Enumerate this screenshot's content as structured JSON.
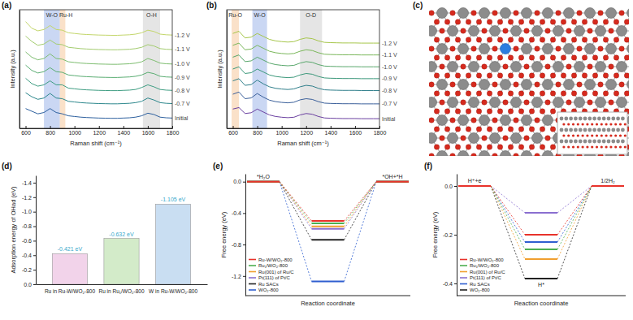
{
  "chart_data": [
    {
      "type": "line",
      "panel_label": "(a)",
      "x_label": "Raman shift (cm⁻¹)",
      "y_label": "Intensity (a.u.)",
      "x": [
        600,
        650,
        700,
        750,
        800,
        850,
        900,
        950,
        1000,
        1050,
        1100,
        1150,
        1200,
        1250,
        1300,
        1350,
        1400,
        1450,
        1500,
        1550,
        1600,
        1650,
        1700,
        1750,
        1800
      ],
      "xlim": [
        550,
        1800
      ],
      "xticks": [
        600,
        800,
        1000,
        1200,
        1400,
        1600,
        1800
      ],
      "ylim": [
        0,
        9
      ],
      "tick_labels": "x",
      "bands": [
        {
          "label": "W-O",
          "from": 750,
          "to": 880,
          "color": "#9fb6ea"
        },
        {
          "label": "Ru-H",
          "from": 880,
          "to": 925,
          "color": "#f6c99c"
        },
        {
          "label": "O-H",
          "from": 1560,
          "to": 1700,
          "color": "#cfcfcf"
        }
      ],
      "series": [
        {
          "name": "-1.2 V",
          "color": "#c3d66a",
          "values": [
            8.1,
            7.6,
            7.4,
            7.5,
            7.8,
            7.5,
            7.45,
            7.25,
            7.2,
            7.15,
            7.12,
            7.1,
            7.08,
            7.07,
            7.06,
            7.06,
            7.08,
            7.1,
            7.15,
            7.25,
            7.45,
            7.35,
            7.15,
            7.1,
            7.08
          ]
        },
        {
          "name": "-1.1 V",
          "color": "#a3cc6e",
          "values": [
            7.0,
            6.6,
            6.3,
            6.4,
            6.7,
            6.4,
            6.35,
            6.15,
            6.1,
            6.05,
            6.02,
            6.0,
            5.98,
            5.97,
            5.96,
            5.96,
            5.98,
            6.0,
            6.05,
            6.15,
            6.35,
            6.25,
            6.05,
            6.0,
            5.98
          ]
        },
        {
          "name": "-1.0 V",
          "color": "#7dbd6f",
          "values": [
            5.8,
            5.4,
            5.2,
            5.3,
            5.65,
            5.3,
            5.25,
            5.05,
            5.0,
            4.95,
            4.92,
            4.9,
            4.88,
            4.87,
            4.86,
            4.86,
            4.88,
            4.9,
            4.95,
            5.05,
            5.3,
            5.15,
            4.95,
            4.9,
            4.88
          ]
        },
        {
          "name": "-0.9 V",
          "color": "#5aad72",
          "values": [
            4.8,
            4.4,
            4.2,
            4.3,
            4.6,
            4.3,
            4.25,
            4.05,
            4.0,
            3.95,
            3.92,
            3.9,
            3.88,
            3.87,
            3.86,
            3.86,
            3.88,
            3.9,
            3.95,
            4.05,
            4.25,
            4.15,
            3.95,
            3.9,
            3.88
          ]
        },
        {
          "name": "-0.8 V",
          "color": "#3e9d82",
          "values": [
            3.8,
            3.4,
            3.2,
            3.3,
            3.6,
            3.3,
            3.3,
            3.05,
            3.0,
            2.95,
            2.92,
            2.9,
            2.88,
            2.87,
            2.86,
            2.86,
            2.88,
            2.9,
            2.95,
            3.1,
            3.3,
            3.15,
            2.95,
            2.9,
            2.88
          ]
        },
        {
          "name": "-0.7 V",
          "color": "#2c878c",
          "values": [
            2.7,
            2.4,
            2.2,
            2.3,
            2.65,
            2.3,
            2.25,
            2.05,
            2.0,
            1.95,
            1.92,
            1.9,
            1.88,
            1.87,
            1.86,
            1.86,
            1.88,
            1.9,
            1.95,
            2.05,
            2.3,
            2.15,
            1.95,
            1.9,
            1.88
          ]
        },
        {
          "name": "Initial",
          "color": "#2c5f9e",
          "values": [
            1.5,
            1.3,
            1.1,
            1.2,
            1.5,
            1.2,
            1.1,
            0.95,
            0.9,
            0.85,
            0.82,
            0.8,
            0.78,
            0.77,
            0.76,
            0.76,
            0.78,
            0.8,
            0.85,
            0.95,
            1.15,
            1.05,
            0.85,
            0.8,
            0.78
          ]
        }
      ]
    },
    {
      "type": "line",
      "panel_label": "(b)",
      "x_label": "Raman shift (cm⁻¹)",
      "y_label": "Intensity (a.u.)",
      "x": [
        600,
        650,
        700,
        750,
        800,
        850,
        900,
        950,
        1000,
        1050,
        1100,
        1150,
        1200,
        1250,
        1300,
        1350,
        1400,
        1450,
        1500,
        1550,
        1600,
        1650,
        1700,
        1750,
        1800
      ],
      "xlim": [
        550,
        1800
      ],
      "xticks": [
        600,
        800,
        1000,
        1200,
        1400,
        1600,
        1800
      ],
      "ylim": [
        0,
        8
      ],
      "tick_labels": "x",
      "bands": [
        {
          "label": "Ru-O",
          "from": 590,
          "to": 650,
          "color": "#f6c99c"
        },
        {
          "label": "W-O",
          "from": 760,
          "to": 880,
          "color": "#9fb6ea"
        },
        {
          "label": "O-D",
          "from": 1150,
          "to": 1330,
          "color": "#cfcfcf"
        }
      ],
      "series": [
        {
          "name": "-1.2 V",
          "color": "#a6c64a",
          "values": [
            6.4,
            6.55,
            6.1,
            6.15,
            6.4,
            6.2,
            6.0,
            5.9,
            5.85,
            5.82,
            5.85,
            6.0,
            6.1,
            6.05,
            5.9,
            5.8,
            5.78,
            5.77,
            5.76,
            5.76,
            5.76,
            5.75,
            5.75,
            5.75,
            5.75
          ]
        },
        {
          "name": "-1.1 V",
          "color": "#7ab75a",
          "values": [
            5.6,
            5.75,
            5.3,
            5.35,
            5.6,
            5.4,
            5.2,
            5.1,
            5.05,
            5.02,
            5.05,
            5.2,
            5.3,
            5.25,
            5.1,
            5.0,
            4.98,
            4.97,
            4.96,
            4.96,
            4.96,
            4.95,
            4.95,
            4.95,
            4.95
          ]
        },
        {
          "name": "-1.0 V",
          "color": "#58a76b",
          "values": [
            4.8,
            4.95,
            4.5,
            4.55,
            4.8,
            4.6,
            4.4,
            4.3,
            4.25,
            4.22,
            4.25,
            4.4,
            4.5,
            4.45,
            4.3,
            4.2,
            4.18,
            4.17,
            4.16,
            4.16,
            4.16,
            4.15,
            4.15,
            4.15,
            4.15
          ]
        },
        {
          "name": "-0.9 V",
          "color": "#3b987a",
          "values": [
            4.0,
            4.15,
            3.7,
            3.75,
            4.0,
            3.8,
            3.6,
            3.5,
            3.45,
            3.42,
            3.45,
            3.6,
            3.7,
            3.65,
            3.5,
            3.4,
            3.38,
            3.37,
            3.36,
            3.36,
            3.36,
            3.35,
            3.35,
            3.35,
            3.35
          ]
        },
        {
          "name": "-0.8 V",
          "color": "#2e7e8a",
          "values": [
            3.2,
            3.35,
            2.9,
            2.95,
            3.25,
            3.0,
            2.8,
            2.7,
            2.65,
            2.62,
            2.66,
            2.8,
            2.9,
            2.85,
            2.7,
            2.6,
            2.58,
            2.57,
            2.56,
            2.56,
            2.56,
            2.55,
            2.55,
            2.55,
            2.55
          ]
        },
        {
          "name": "-0.7 V",
          "color": "#3a5f9a",
          "values": [
            2.3,
            2.45,
            2.0,
            2.05,
            2.35,
            2.1,
            1.9,
            1.8,
            1.75,
            1.72,
            1.76,
            1.92,
            2.0,
            1.95,
            1.8,
            1.7,
            1.68,
            1.67,
            1.66,
            1.66,
            1.66,
            1.65,
            1.65,
            1.65,
            1.65
          ]
        },
        {
          "name": "Initial",
          "color": "#6a3fa0",
          "values": [
            1.3,
            1.4,
            1.0,
            1.05,
            1.3,
            1.1,
            0.9,
            0.8,
            0.75,
            0.72,
            0.75,
            0.9,
            1.0,
            0.95,
            0.8,
            0.7,
            0.68,
            0.67,
            0.66,
            0.66,
            0.66,
            0.65,
            0.65,
            0.65,
            0.65
          ]
        }
      ]
    },
    {
      "type": "diagram",
      "panel_label": "(c)"
    },
    {
      "type": "bar",
      "panel_label": "(d)",
      "y_label": "Adsorption energy of OHad (eV)",
      "categories": [
        "Ru in Ru-W/WO₂-800",
        "Ru in Ru₁/WO₂-800",
        "W in Ru-W/WO₂-800"
      ],
      "values": [
        -0.421,
        -0.632,
        -1.105
      ],
      "value_labels": [
        "-0.421 eV",
        "-0.632 eV",
        "-1.105 eV"
      ],
      "colors": [
        "#f2d3ea",
        "#d3ebc9",
        "#c9def2"
      ],
      "data_labels": true,
      "ylim": [
        0,
        -1.5
      ],
      "yticks": [
        {
          "value": 0,
          "label": "0.0"
        },
        -0.2,
        -0.4,
        -0.6,
        -0.8,
        {
          "value": -1,
          "label": "-1.0"
        },
        -1.2,
        -1.4
      ]
    },
    {
      "type": "step",
      "panel_label": "(e)",
      "x_label": "Reaction coordinate",
      "y_label": "Free energy (eV)",
      "categories": [
        "*H₂O",
        null,
        "*OH+*H"
      ],
      "ylim": [
        -1.45,
        0.1
      ],
      "yticks": [
        {
          "value": 0,
          "label": "0.0"
        },
        -0.4,
        -0.8,
        -1.2
      ],
      "tick_labels": "y",
      "legend": "bottom-left",
      "series": [
        {
          "name": "Ru-W/WO₂-800",
          "color": "#e8322b",
          "values": [
            0,
            -0.5,
            0
          ]
        },
        {
          "name": "Ru₁/WO₂-800",
          "color": "#4caf50",
          "values": [
            0,
            -0.53,
            0
          ]
        },
        {
          "name": "Ru(001) of Ru/C",
          "color": "#f0a030",
          "values": [
            0,
            -0.57,
            0
          ]
        },
        {
          "name": "Pt(111) of Pt/C",
          "color": "#8a6fd0",
          "values": [
            0,
            -0.6,
            0
          ]
        },
        {
          "name": "Ru SACs",
          "color": "#222222",
          "values": [
            0,
            -0.74,
            0
          ]
        },
        {
          "name": "WO₂-800",
          "color": "#2f5fd0",
          "values": [
            0,
            -1.27,
            0
          ]
        }
      ]
    },
    {
      "type": "step",
      "panel_label": "(f)",
      "x_label": "Reaction coordinate",
      "y_label": "Free energy (eV)",
      "categories": [
        "H⁺+e",
        "H*",
        "1/2H₂"
      ],
      "ylim": [
        -0.45,
        0.05
      ],
      "yticks": [
        {
          "value": 0,
          "label": "0.0"
        },
        -0.2,
        -0.4
      ],
      "tick_labels": "y",
      "legend": "bottom-left",
      "series": [
        {
          "name": "Ru-W/WO₂-800",
          "color": "#e8322b",
          "values": [
            0,
            -0.2,
            0
          ]
        },
        {
          "name": "Ru₁/WO₂-800",
          "color": "#4caf50",
          "values": [
            0,
            -0.26,
            0
          ]
        },
        {
          "name": "Ru(001) of Ru/C",
          "color": "#f0a030",
          "values": [
            0,
            -0.3,
            0
          ]
        },
        {
          "name": "Pt(111) of Pt/C",
          "color": "#8a6fd0",
          "values": [
            0,
            -0.11,
            0
          ]
        },
        {
          "name": "Ru SACs",
          "color": "#2f5fd0",
          "values": [
            0,
            -0.23,
            0
          ]
        },
        {
          "name": "WO₂-800",
          "color": "#222222",
          "values": [
            0,
            -0.38,
            0
          ]
        }
      ]
    }
  ]
}
